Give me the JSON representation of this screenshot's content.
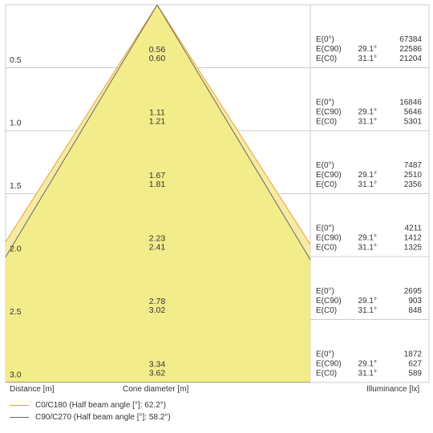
{
  "rows": [
    {
      "distance": "0.5",
      "cone": [
        "0.56",
        "0.60"
      ],
      "illuminance": [
        {
          "label": "E(0°)",
          "angle": "",
          "value": "67384"
        },
        {
          "label": "E(C90)",
          "angle": "29.1°",
          "value": "22586"
        },
        {
          "label": "E(C0)",
          "angle": "31.1°",
          "value": "21204"
        }
      ]
    },
    {
      "distance": "1.0",
      "cone": [
        "1.11",
        "1.21"
      ],
      "illuminance": [
        {
          "label": "E(0°)",
          "angle": "",
          "value": "16846"
        },
        {
          "label": "E(C90)",
          "angle": "29.1°",
          "value": "5646"
        },
        {
          "label": "E(C0)",
          "angle": "31.1°",
          "value": "5301"
        }
      ]
    },
    {
      "distance": "1.5",
      "cone": [
        "1.67",
        "1.81"
      ],
      "illuminance": [
        {
          "label": "E(0°)",
          "angle": "",
          "value": "7487"
        },
        {
          "label": "E(C90)",
          "angle": "29.1°",
          "value": "2510"
        },
        {
          "label": "E(C0)",
          "angle": "31.1°",
          "value": "2356"
        }
      ]
    },
    {
      "distance": "2.0",
      "cone": [
        "2.23",
        "2.41"
      ],
      "illuminance": [
        {
          "label": "E(0°)",
          "angle": "",
          "value": "4211"
        },
        {
          "label": "E(C90)",
          "angle": "29.1°",
          "value": "1412"
        },
        {
          "label": "E(C0)",
          "angle": "31.1°",
          "value": "1325"
        }
      ]
    },
    {
      "distance": "2.5",
      "cone": [
        "2.78",
        "3.02"
      ],
      "illuminance": [
        {
          "label": "E(0°)",
          "angle": "",
          "value": "2695"
        },
        {
          "label": "E(C90)",
          "angle": "29.1°",
          "value": "903"
        },
        {
          "label": "E(C0)",
          "angle": "31.1°",
          "value": "848"
        }
      ]
    },
    {
      "distance": "3.0",
      "cone": [
        "3.34",
        "3.62"
      ],
      "illuminance": [
        {
          "label": "E(0°)",
          "angle": "",
          "value": "1872"
        },
        {
          "label": "E(C90)",
          "angle": "29.1°",
          "value": "627"
        },
        {
          "label": "E(C0)",
          "angle": "31.1°",
          "value": "589"
        }
      ]
    }
  ],
  "labels": {
    "distance": "Distance [m]",
    "cone_diameter": "Cone diameter [m]",
    "illuminance": "Illuminance [lx]"
  },
  "legend": [
    {
      "text": "C0/C180 (Half beam angle [°]: 62.2°)",
      "color": "#f0a030"
    },
    {
      "text": "C90/C270 (Half beam angle [°]: 58.2°)",
      "color": "#666666"
    }
  ],
  "colors": {
    "cone_outer_fill": "#f5eba4",
    "cone_inner_fill": "#f2ec8a",
    "grid": "#cccccc",
    "c0_line": "#f0a030",
    "c90_line": "#666666"
  },
  "half_angles_deg": {
    "c0": 62.2,
    "c90": 58.2
  }
}
